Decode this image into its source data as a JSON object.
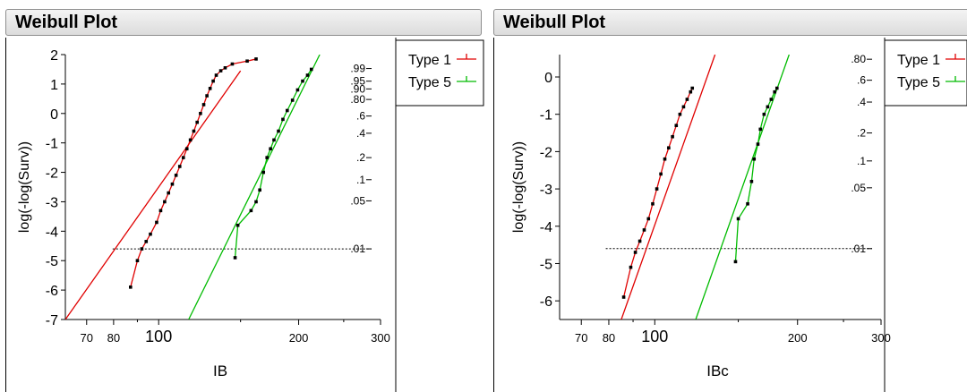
{
  "chart_data": [
    {
      "type": "line",
      "title": "Weibull Plot",
      "xlabel": "IB",
      "ylabel": "log(-log(Surv))",
      "x_scale": "log",
      "xlim": [
        63,
        300
      ],
      "ylim": [
        -7,
        2
      ],
      "x_ticks": [
        "70",
        "80",
        "100",
        "200",
        "300"
      ],
      "y_ticks": [
        "2",
        "1",
        "0",
        "-1",
        "-2",
        "-3",
        "-4",
        "-5",
        "-6",
        "-7"
      ],
      "right_axis_ticks": [
        ".99",
        ".95",
        ".90",
        ".80",
        ".6",
        ".4",
        ".2",
        ".1",
        ".05",
        ".01"
      ],
      "right_axis_values": [
        1.527,
        1.097,
        0.834,
        0.476,
        -0.087,
        -0.672,
        -1.5,
        -2.25,
        -2.97,
        -4.6
      ],
      "reference_line_y": -4.6,
      "legend": [
        "Type 1",
        "Type 5"
      ],
      "series": [
        {
          "name": "Type 1",
          "color": "#e00000",
          "fit_line": [
            [
              63,
              -7.0
            ],
            [
              150,
              1.45
            ]
          ],
          "points": [
            [
              87,
              -5.9
            ],
            [
              90,
              -5.0
            ],
            [
              92,
              -4.6
            ],
            [
              94,
              -4.35
            ],
            [
              96,
              -4.1
            ],
            [
              99,
              -3.7
            ],
            [
              101,
              -3.3
            ],
            [
              103,
              -3.0
            ],
            [
              105,
              -2.7
            ],
            [
              107,
              -2.4
            ],
            [
              109,
              -2.1
            ],
            [
              111,
              -1.8
            ],
            [
              113,
              -1.5
            ],
            [
              115,
              -1.2
            ],
            [
              117,
              -0.9
            ],
            [
              119,
              -0.6
            ],
            [
              121,
              -0.3
            ],
            [
              123,
              0.0
            ],
            [
              125,
              0.3
            ],
            [
              127,
              0.6
            ],
            [
              129,
              0.85
            ],
            [
              131,
              1.1
            ],
            [
              133,
              1.3
            ],
            [
              136,
              1.45
            ],
            [
              139,
              1.55
            ],
            [
              144,
              1.68
            ],
            [
              155,
              1.78
            ],
            [
              162,
              1.85
            ]
          ]
        },
        {
          "name": "Type 5",
          "color": "#00bb00",
          "fit_line": [
            [
              116,
              -7.0
            ],
            [
              222,
              2.0
            ]
          ],
          "points": [
            [
              146,
              -4.9
            ],
            [
              148,
              -3.8
            ],
            [
              158,
              -3.3
            ],
            [
              162,
              -3.0
            ],
            [
              165,
              -2.6
            ],
            [
              168,
              -2.0
            ],
            [
              171,
              -1.5
            ],
            [
              174,
              -1.2
            ],
            [
              177,
              -0.9
            ],
            [
              181,
              -0.6
            ],
            [
              185,
              -0.2
            ],
            [
              189,
              0.1
            ],
            [
              194,
              0.45
            ],
            [
              199,
              0.8
            ],
            [
              204,
              1.1
            ],
            [
              209,
              1.3
            ],
            [
              213,
              1.5
            ]
          ]
        }
      ]
    },
    {
      "type": "line",
      "title": "Weibull Plot",
      "xlabel": "IBc",
      "ylabel": "log(-log(Surv))",
      "x_scale": "log",
      "xlim": [
        63,
        300
      ],
      "ylim": [
        -6.5,
        0.6
      ],
      "x_ticks": [
        "70",
        "80",
        "100",
        "200",
        "300"
      ],
      "y_ticks": [
        "0",
        "-1",
        "-2",
        "-3",
        "-4",
        "-5",
        "-6"
      ],
      "right_axis_ticks": [
        ".80",
        ".6",
        ".4",
        ".2",
        ".1",
        ".05",
        ".01"
      ],
      "right_axis_values": [
        0.476,
        -0.087,
        -0.672,
        -1.5,
        -2.25,
        -2.97,
        -4.6
      ],
      "reference_line_y": -4.6,
      "legend": [
        "Type 1",
        "Type 5"
      ],
      "series": [
        {
          "name": "Type 1",
          "color": "#e00000",
          "fit_line": [
            [
              85,
              -6.5
            ],
            [
              134,
              0.6
            ]
          ],
          "points": [
            [
              86,
              -5.9
            ],
            [
              89,
              -5.1
            ],
            [
              91,
              -4.7
            ],
            [
              93,
              -4.4
            ],
            [
              95,
              -4.1
            ],
            [
              97,
              -3.8
            ],
            [
              99,
              -3.4
            ],
            [
              101,
              -3.0
            ],
            [
              103,
              -2.6
            ],
            [
              105,
              -2.2
            ],
            [
              107,
              -1.9
            ],
            [
              109,
              -1.6
            ],
            [
              111,
              -1.3
            ],
            [
              113,
              -1.0
            ],
            [
              115,
              -0.8
            ],
            [
              117,
              -0.6
            ],
            [
              119,
              -0.4
            ],
            [
              120,
              -0.3
            ]
          ]
        },
        {
          "name": "Type 5",
          "color": "#00bb00",
          "fit_line": [
            [
              122,
              -6.5
            ],
            [
              192,
              0.6
            ]
          ],
          "points": [
            [
              148,
              -4.95
            ],
            [
              150,
              -3.8
            ],
            [
              157,
              -3.4
            ],
            [
              160,
              -2.8
            ],
            [
              162,
              -2.2
            ],
            [
              165,
              -1.8
            ],
            [
              167,
              -1.4
            ],
            [
              170,
              -1.0
            ],
            [
              173,
              -0.8
            ],
            [
              176,
              -0.6
            ],
            [
              179,
              -0.4
            ],
            [
              181,
              -0.3
            ]
          ]
        }
      ]
    }
  ]
}
